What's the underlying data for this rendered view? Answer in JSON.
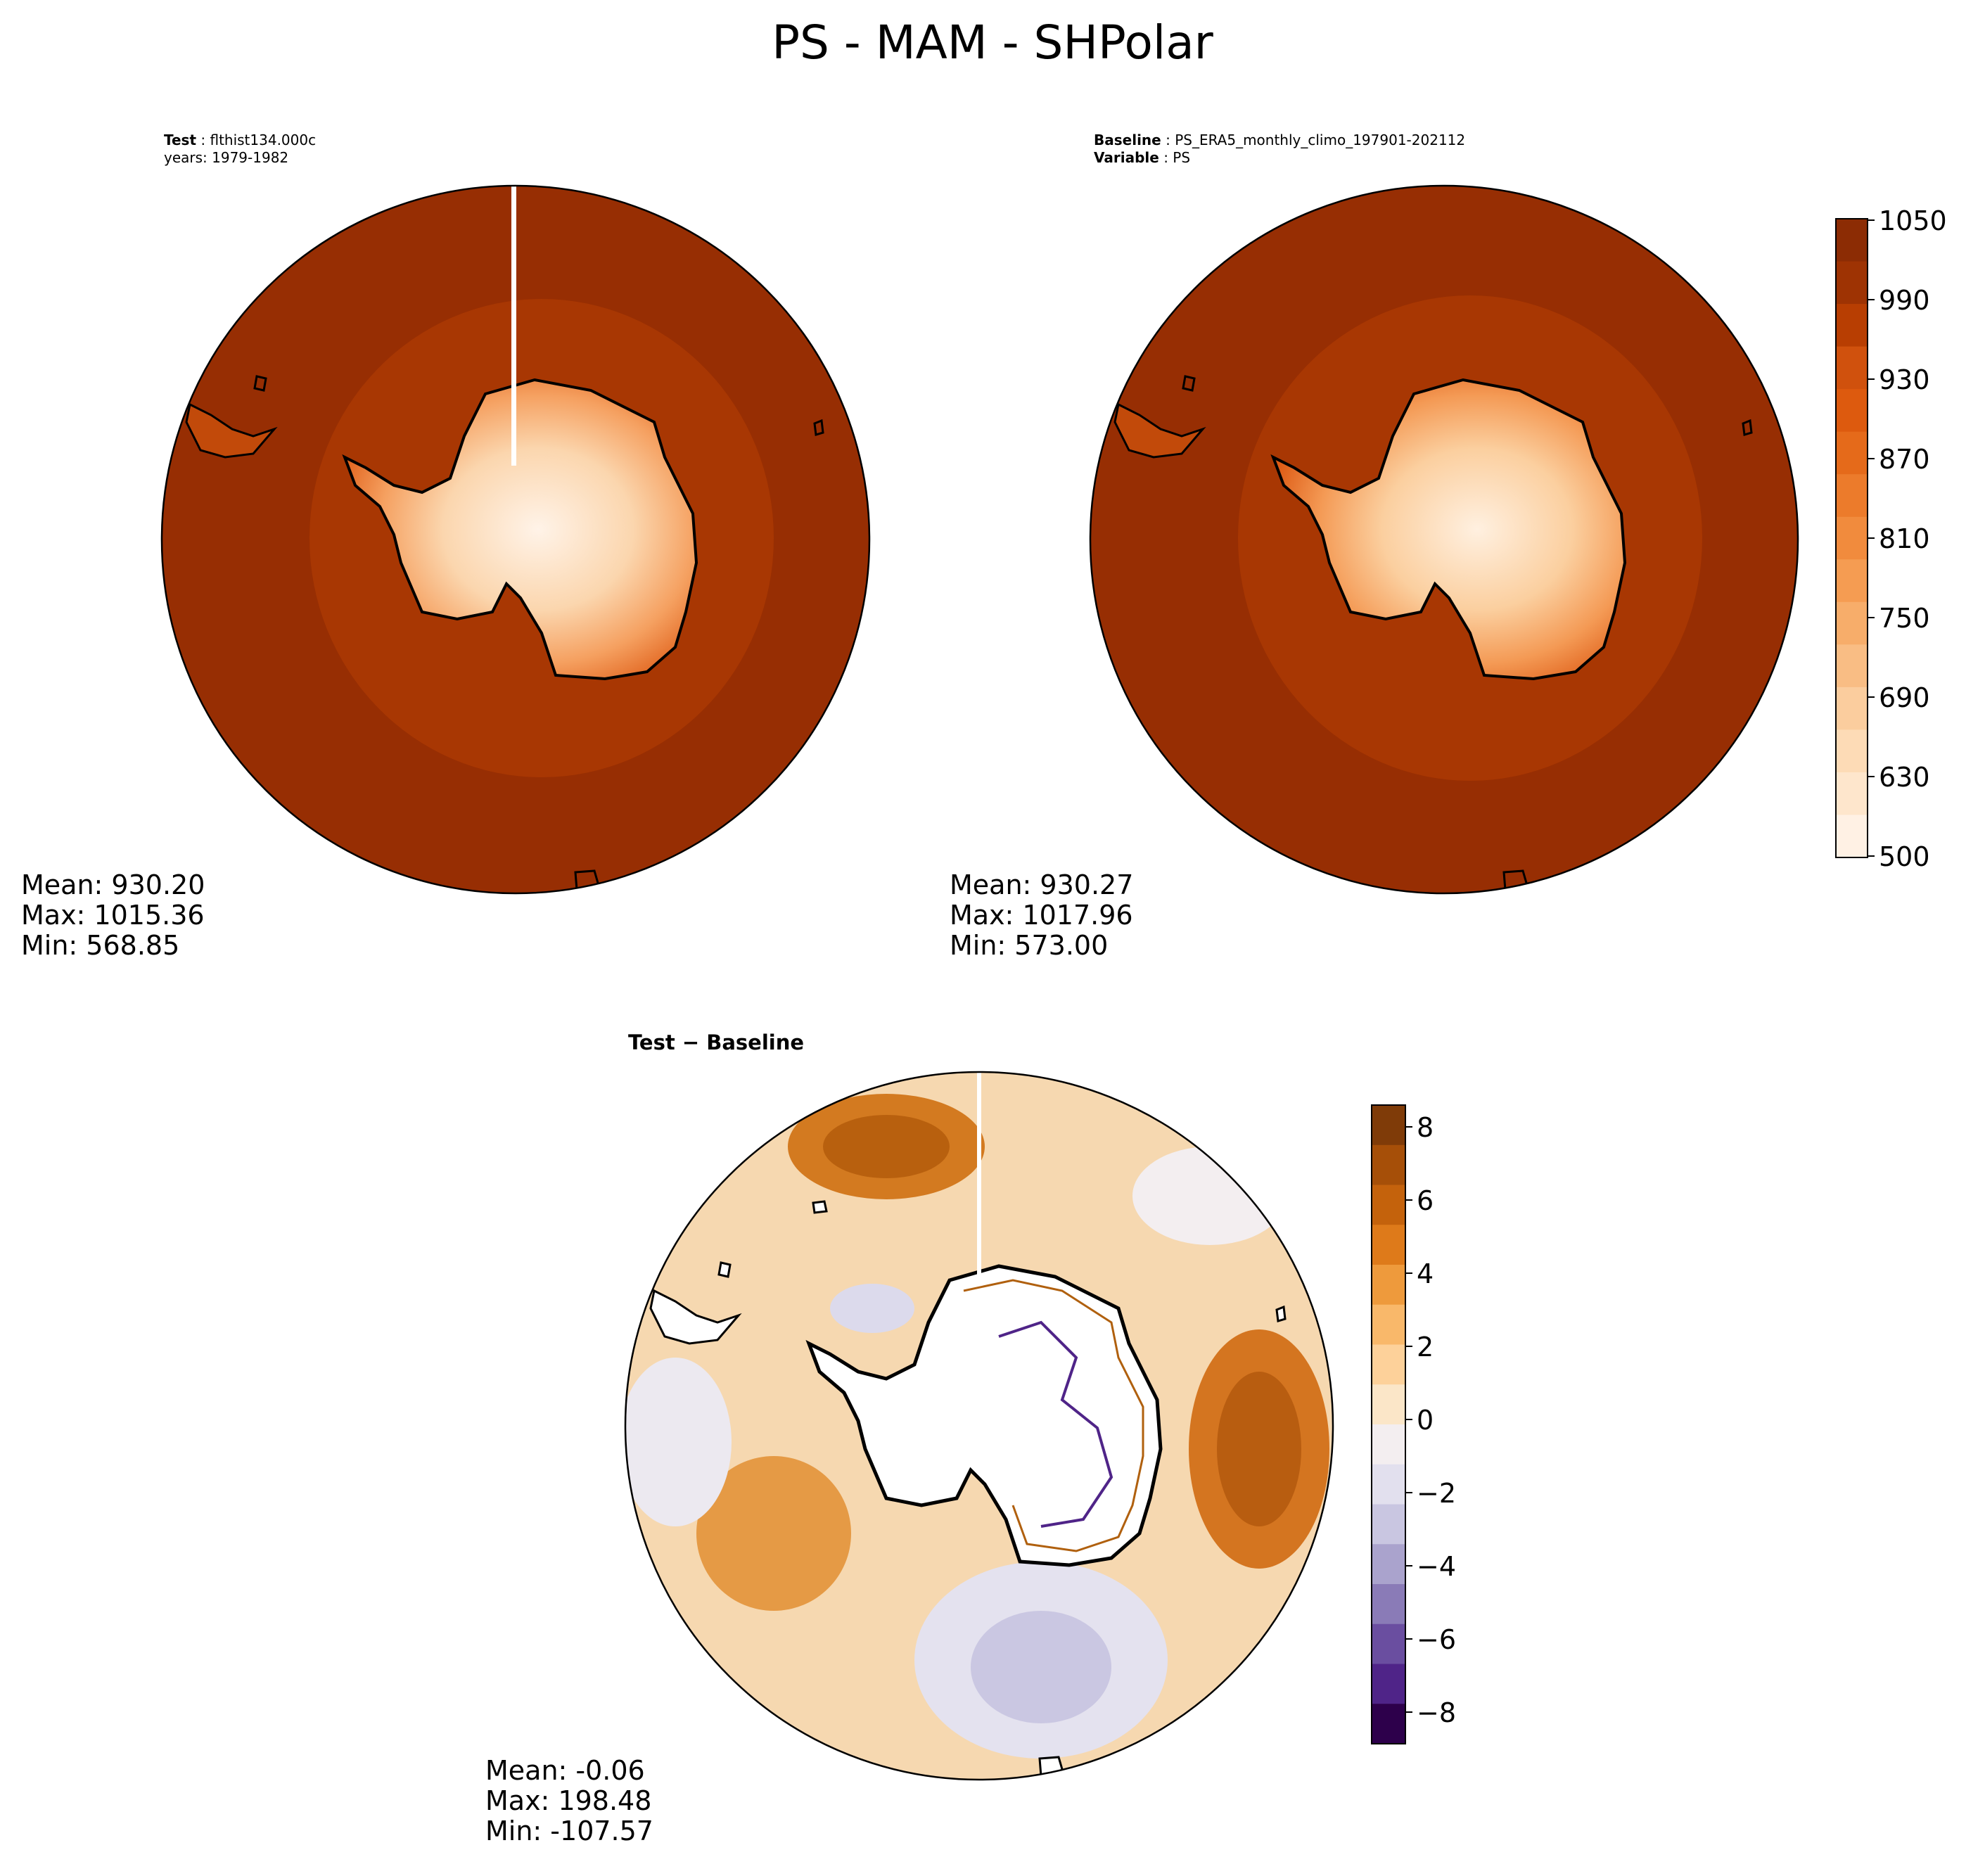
{
  "title": "PS - MAM - SHPolar",
  "panels": [
    {
      "id": "test",
      "header": [
        {
          "label": "Test",
          "value": "flthist134.000c"
        },
        {
          "label": "",
          "value": "years: 1979-1982"
        }
      ],
      "stats": {
        "mean": "Mean: 930.20",
        "max": "Max: 1015.36",
        "min": "Min: 568.85"
      }
    },
    {
      "id": "baseline",
      "header": [
        {
          "label": "Baseline",
          "value": "PS_ERA5_monthly_climo_197901-202112"
        },
        {
          "label": "Variable",
          "value": "PS"
        }
      ],
      "stats": {
        "mean": "Mean: 930.27",
        "max": "Max: 1017.96",
        "min": "Min: 573.00"
      }
    },
    {
      "id": "diff",
      "header": [
        {
          "label": "Test − Baseline",
          "value": ""
        }
      ],
      "stats": {
        "mean": "Mean: -0.06",
        "max": "Max: 198.48",
        "min": "Min: -107.57"
      }
    }
  ],
  "colorbars": {
    "ps": {
      "ticks": [
        "1050",
        "990",
        "930",
        "870",
        "810",
        "750",
        "690",
        "630",
        "500"
      ],
      "colors_top_to_bottom": [
        "#8c2c04",
        "#9e3303",
        "#b83e02",
        "#d0510d",
        "#dd5a0e",
        "#e56a1a",
        "#ec7b2b",
        "#f18b3d",
        "#f59c52",
        "#f7ad6a",
        "#f9bd84",
        "#fbcd9e",
        "#fddbb6",
        "#fee6cc",
        "#fff1e4"
      ]
    },
    "diff": {
      "ticks": [
        "8",
        "6",
        "4",
        "2",
        "0",
        "−2",
        "−4",
        "−6",
        "−8"
      ],
      "colors_top_to_bottom": [
        "#7f3b08",
        "#a64f08",
        "#c4620c",
        "#de7a1a",
        "#ee9a3c",
        "#f9b86a",
        "#fdd19a",
        "#fbe6c8",
        "#f3eef0",
        "#e2e0ee",
        "#c9c6e1",
        "#aaa3cd",
        "#8a7bb7",
        "#6a4ea0",
        "#4f2488",
        "#2d004b"
      ]
    }
  }
}
